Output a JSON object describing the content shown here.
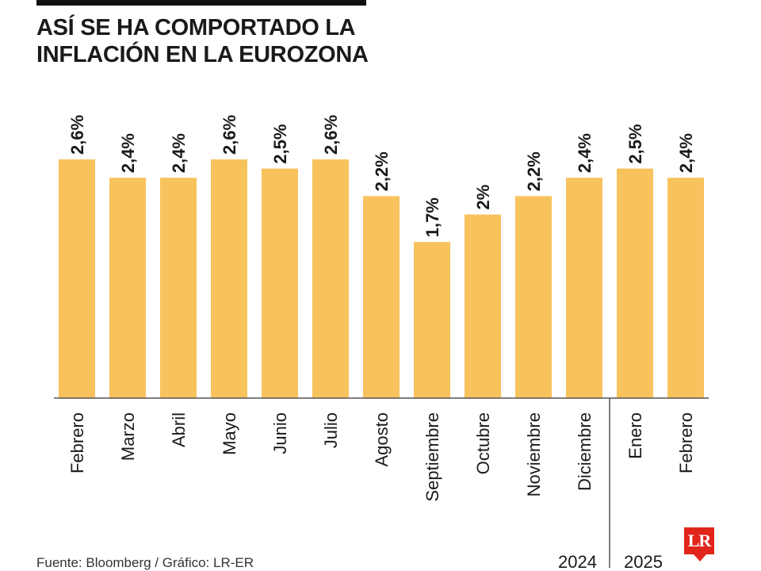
{
  "title_line1": "ASÍ SE HA COMPORTADO LA",
  "title_line2": "INFLACIÓN EN LA EUROZONA",
  "source": "Fuente: Bloomberg / Gráfico: LR-ER",
  "logo_text": "LR",
  "colors": {
    "bar": "#f8c25c",
    "text": "#1a1a1a",
    "baseline": "#555555",
    "divider": "#555555",
    "logo": "#e1251b"
  },
  "chart_data": {
    "type": "bar",
    "categories": [
      "Febrero",
      "Marzo",
      "Abril",
      "Mayo",
      "Junio",
      "Julio",
      "Agosto",
      "Septiembre",
      "Octubre",
      "Noviembre",
      "Diciembre",
      "Enero",
      "Febrero"
    ],
    "values": [
      2.6,
      2.4,
      2.4,
      2.6,
      2.5,
      2.6,
      2.2,
      1.7,
      2.0,
      2.2,
      2.4,
      2.5,
      2.4
    ],
    "data_labels": [
      "2,6%",
      "2,4%",
      "2,4%",
      "2,6%",
      "2,5%",
      "2,6%",
      "2,2%",
      "1,7%",
      "2%",
      "2,2%",
      "2,4%",
      "2,5%",
      "2,4%"
    ],
    "ylim": [
      0,
      2.6
    ],
    "groups": [
      {
        "label": "2024",
        "count": 11
      },
      {
        "label": "2025",
        "count": 2
      }
    ],
    "title": "ASÍ SE HA COMPORTADO LA INFLACIÓN EN LA EUROZONA",
    "xlabel": "",
    "ylabel": "",
    "grid": false,
    "legend": "none"
  }
}
